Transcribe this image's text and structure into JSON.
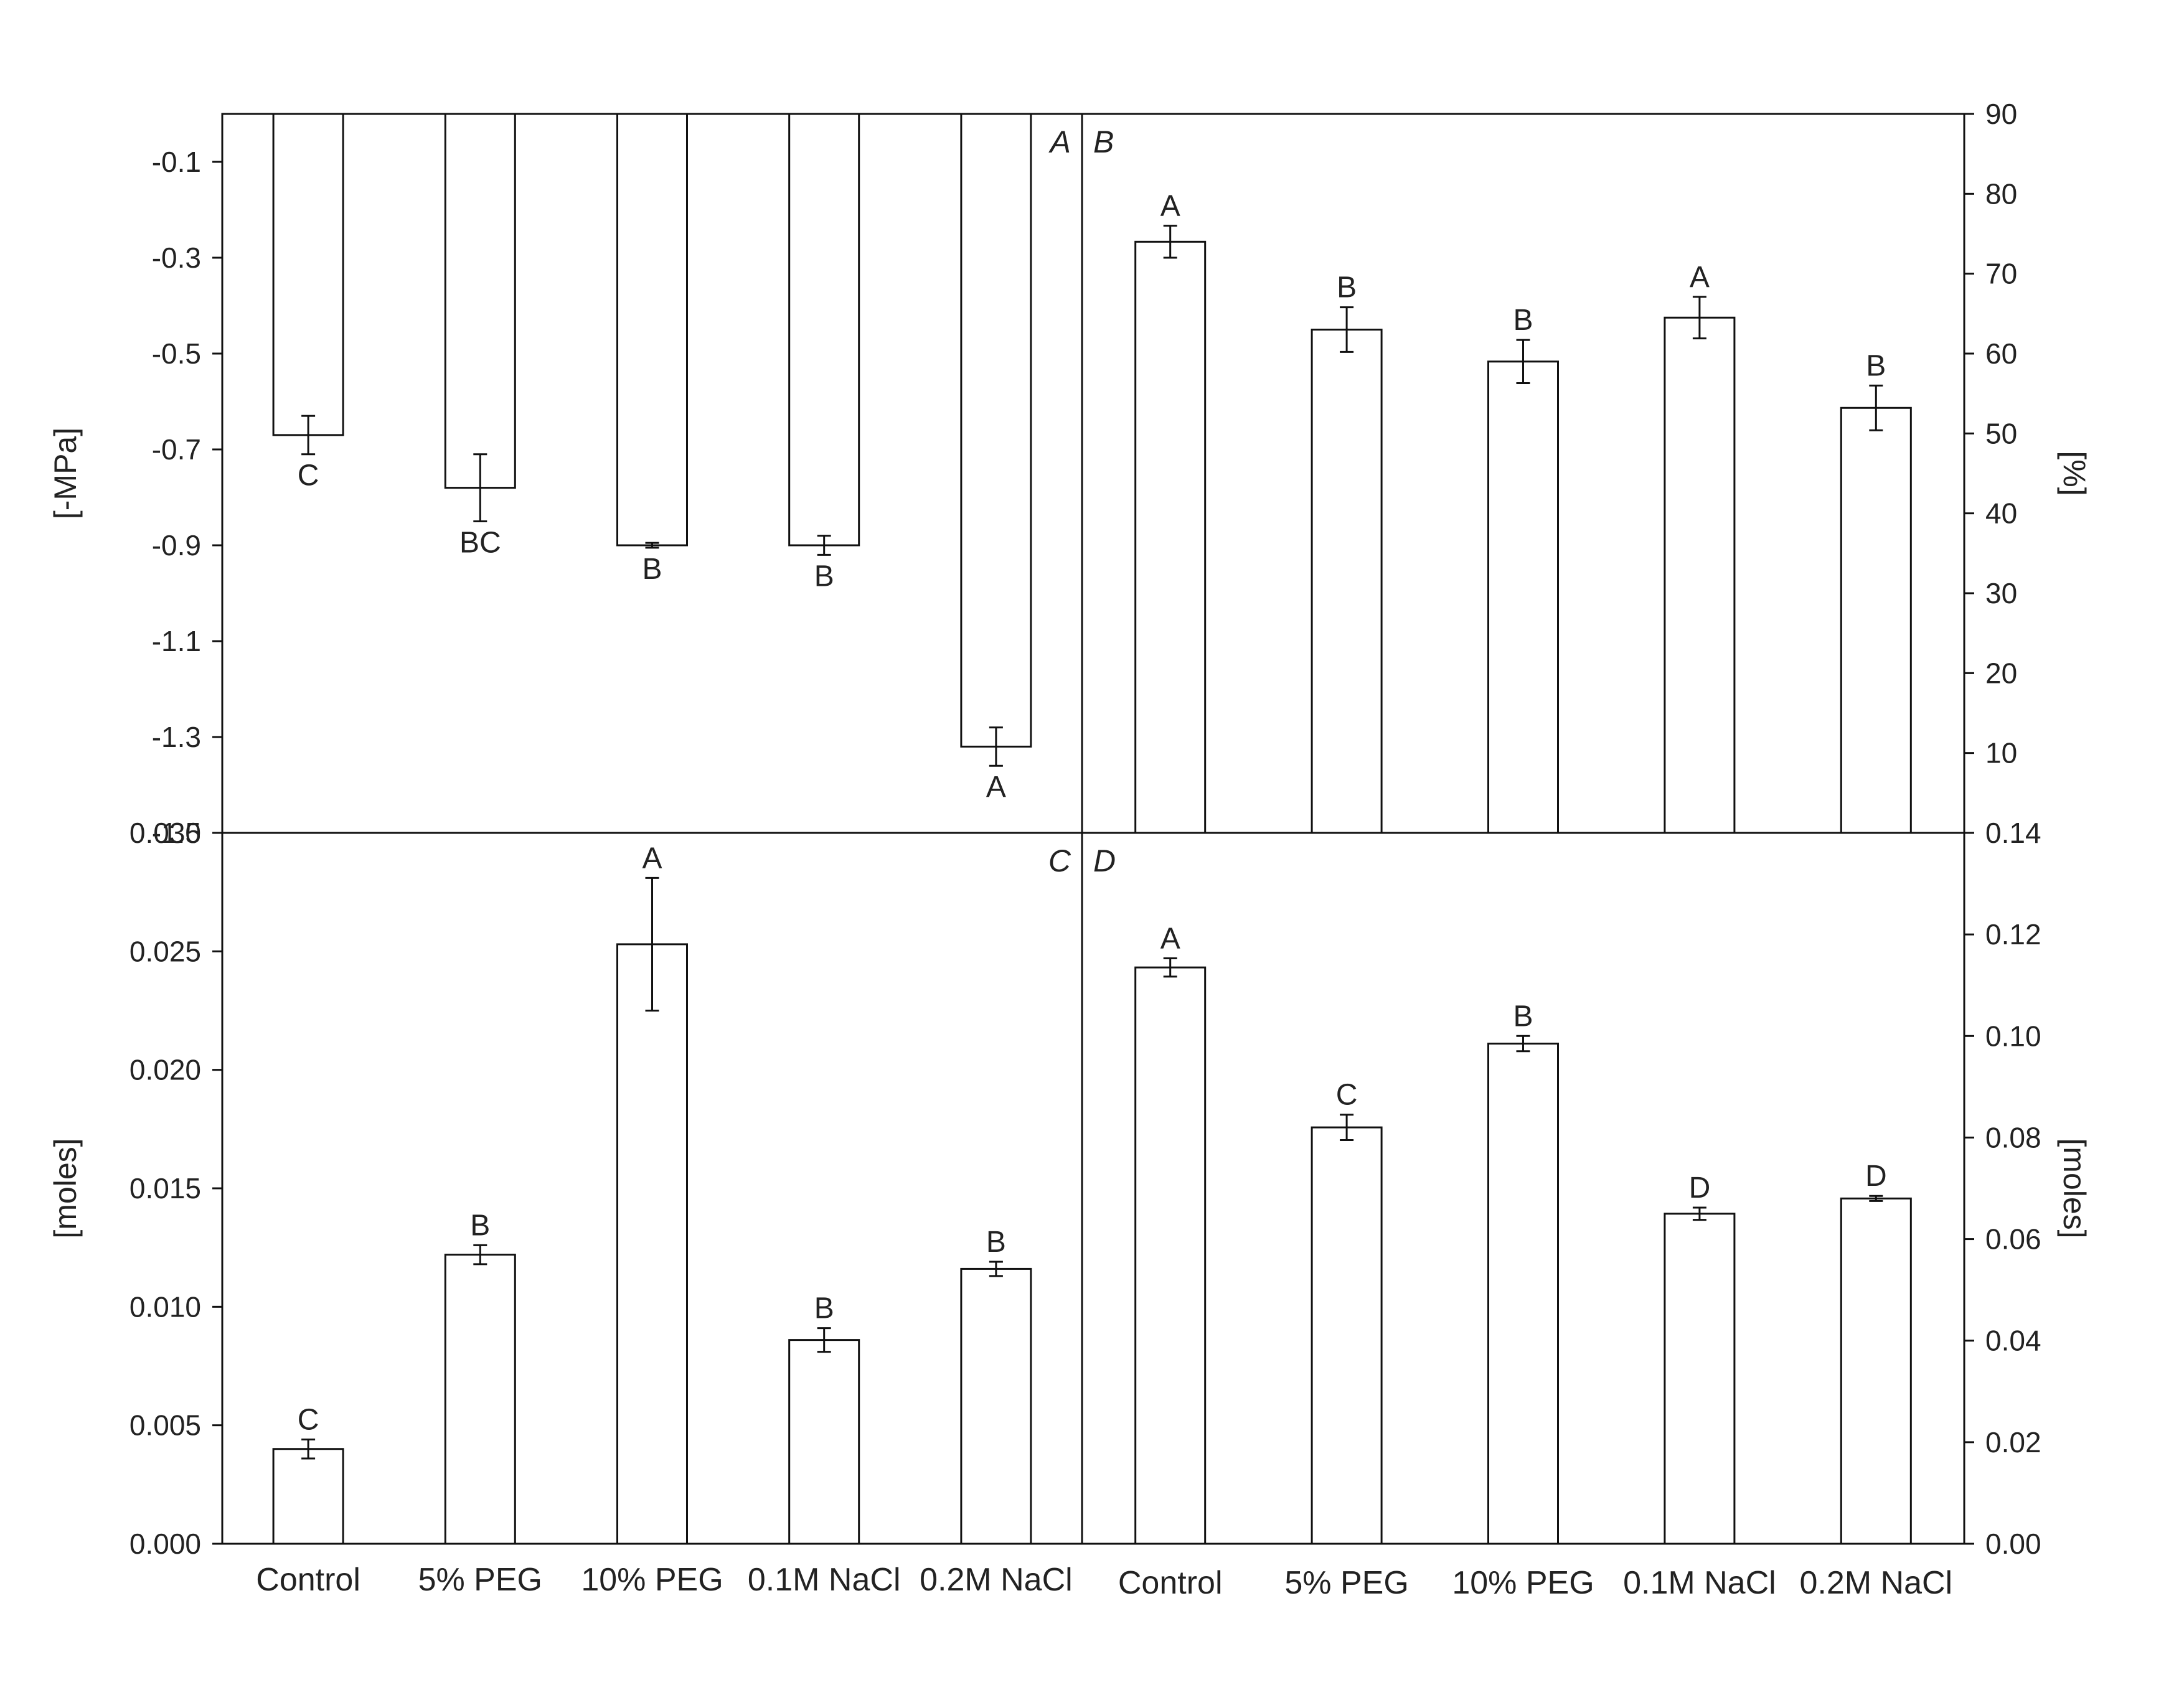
{
  "chart_data": [
    {
      "panel": "A",
      "type": "bar",
      "categories": [
        "Control",
        "5% PEG",
        "10% PEG",
        "0.1M NaCl",
        "0.2M NaCl"
      ],
      "values": [
        -0.67,
        -0.78,
        -0.9,
        -0.9,
        -1.32
      ],
      "errors": [
        0.04,
        0.07,
        0.005,
        0.02,
        0.04
      ],
      "letters": [
        "C",
        "BC",
        "B",
        "B",
        "A"
      ],
      "ylabel": "[-MPa]",
      "ylim": [
        -1.5,
        0
      ],
      "yticks": [
        -0.1,
        -0.3,
        -0.5,
        -0.7,
        -0.9,
        -1.1,
        -1.3,
        -1.5
      ],
      "ytick_labels": [
        "-0.1",
        "-0.3",
        "-0.5",
        "-0.7",
        "-0.9",
        "-1.1",
        "-1.3",
        "-1.5"
      ],
      "axis_side": "left",
      "grid": false
    },
    {
      "panel": "B",
      "type": "bar",
      "categories": [
        "Control",
        "5% PEG",
        "10% PEG",
        "0.1M NaCl",
        "0.2M NaCl"
      ],
      "values": [
        74,
        63,
        59,
        64.5,
        53.2
      ],
      "errors": [
        2,
        2.8,
        2.7,
        2.6,
        2.8
      ],
      "letters": [
        "A",
        "B",
        "B",
        "A",
        "B"
      ],
      "ylabel": "[%]",
      "ylim": [
        0,
        90
      ],
      "yticks": [
        10,
        20,
        30,
        40,
        50,
        60,
        70,
        80,
        90
      ],
      "ytick_labels": [
        "10",
        "20",
        "30",
        "40",
        "50",
        "60",
        "70",
        "80",
        "90"
      ],
      "axis_side": "right",
      "grid": false
    },
    {
      "panel": "C",
      "type": "bar",
      "categories": [
        "Control",
        "5% PEG",
        "10% PEG",
        "0.1M NaCl",
        "0.2M NaCl"
      ],
      "values": [
        0.004,
        0.0122,
        0.0253,
        0.0086,
        0.0116
      ],
      "errors": [
        0.0004,
        0.0004,
        0.0028,
        0.0005,
        0.0003
      ],
      "letters": [
        "C",
        "B",
        "A",
        "B",
        "B"
      ],
      "ylabel": "[moles]",
      "ylim": [
        0,
        0.03
      ],
      "yticks": [
        0,
        0.005,
        0.01,
        0.015,
        0.02,
        0.025,
        0.03
      ],
      "ytick_labels": [
        "0.000",
        "0.005",
        "0.010",
        "0.015",
        "0.020",
        "0.025",
        "0.030"
      ],
      "axis_side": "left",
      "grid": false
    },
    {
      "panel": "D",
      "type": "bar",
      "categories": [
        "Control",
        "5% PEG",
        "10% PEG",
        "0.1M NaCl",
        "0.2M NaCl"
      ],
      "values": [
        0.1135,
        0.082,
        0.0985,
        0.065,
        0.068
      ],
      "errors": [
        0.0018,
        0.0025,
        0.0015,
        0.0012,
        0.0005
      ],
      "letters": [
        "A",
        "C",
        "B",
        "D",
        "D"
      ],
      "ylabel": "[moles]",
      "ylim": [
        0,
        0.14
      ],
      "yticks": [
        0,
        0.02,
        0.04,
        0.06,
        0.08,
        0.1,
        0.12,
        0.14
      ],
      "ytick_labels": [
        "0.00",
        "0.02",
        "0.04",
        "0.06",
        "0.08",
        "0.10",
        "0.12",
        "0.14"
      ],
      "axis_side": "right",
      "grid": false
    }
  ]
}
